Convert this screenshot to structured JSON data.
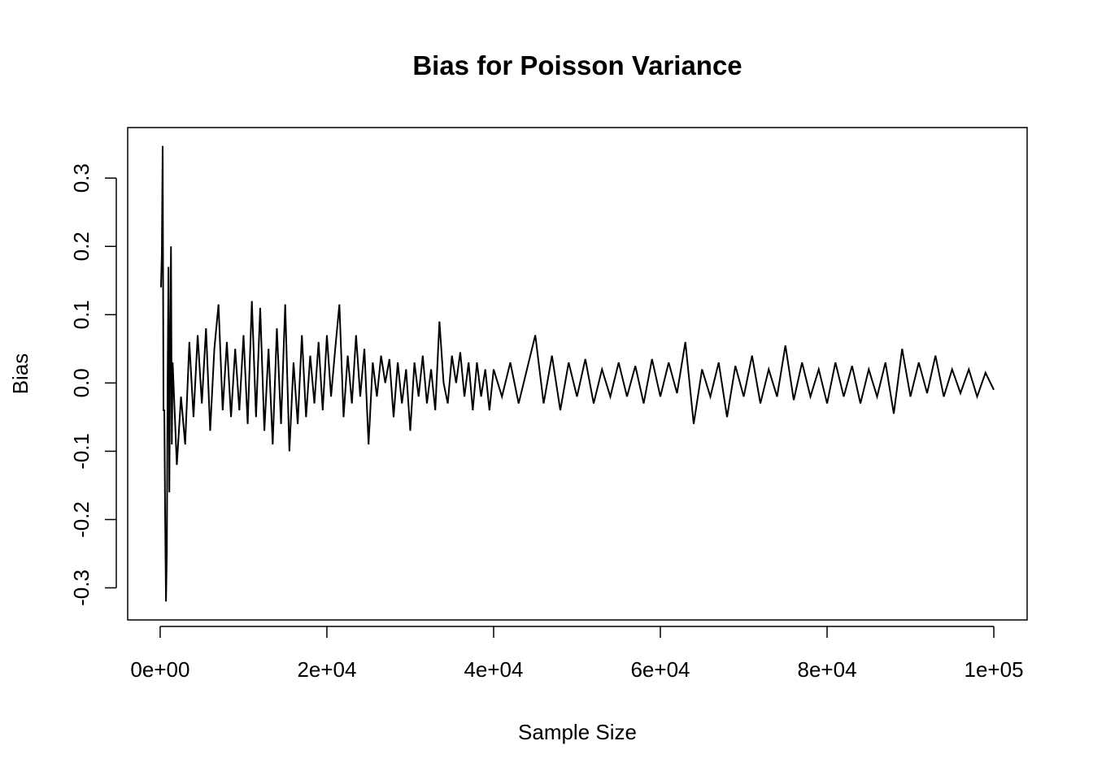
{
  "chart_data": {
    "type": "line",
    "title": "Bias for Poisson Variance",
    "xlabel": "Sample Size",
    "ylabel": "Bias",
    "x": [
      100,
      200,
      300,
      400,
      500,
      600,
      700,
      800,
      900,
      1000,
      1100,
      1200,
      1300,
      1400,
      1500,
      2000,
      2500,
      3000,
      3500,
      4000,
      4500,
      5000,
      5500,
      6000,
      6500,
      7000,
      7500,
      8000,
      8500,
      9000,
      9500,
      10000,
      10500,
      11000,
      11500,
      12000,
      12500,
      13000,
      13500,
      14000,
      14500,
      15000,
      15500,
      16000,
      16500,
      17000,
      17500,
      18000,
      18500,
      19000,
      19500,
      20000,
      20500,
      21000,
      21500,
      22000,
      22500,
      23000,
      23500,
      24000,
      24500,
      25000,
      25500,
      26000,
      26500,
      27000,
      27500,
      28000,
      28500,
      29000,
      29500,
      30000,
      30500,
      31000,
      31500,
      32000,
      32500,
      33000,
      33500,
      34000,
      34500,
      35000,
      35500,
      36000,
      36500,
      37000,
      37500,
      38000,
      38500,
      39000,
      39500,
      40000,
      41000,
      42000,
      43000,
      44000,
      45000,
      46000,
      47000,
      48000,
      49000,
      50000,
      51000,
      52000,
      53000,
      54000,
      55000,
      56000,
      57000,
      58000,
      59000,
      60000,
      61000,
      62000,
      63000,
      64000,
      65000,
      66000,
      67000,
      68000,
      69000,
      70000,
      71000,
      72000,
      73000,
      74000,
      75000,
      76000,
      77000,
      78000,
      79000,
      80000,
      81000,
      82000,
      83000,
      84000,
      85000,
      86000,
      87000,
      88000,
      89000,
      90000,
      91000,
      92000,
      93000,
      94000,
      95000,
      96000,
      97000,
      98000,
      99000,
      100000
    ],
    "series": [
      {
        "name": "Bias",
        "color": "#000000",
        "values": [
          0.14,
          0.19,
          0.347,
          -0.04,
          -0.04,
          -0.2,
          -0.32,
          -0.25,
          0.01,
          0.17,
          -0.16,
          0.05,
          0.2,
          -0.09,
          0.03,
          -0.12,
          -0.02,
          -0.09,
          0.06,
          -0.05,
          0.07,
          -0.03,
          0.08,
          -0.07,
          0.05,
          0.115,
          -0.04,
          0.06,
          -0.05,
          0.05,
          -0.04,
          0.07,
          -0.06,
          0.12,
          -0.05,
          0.11,
          -0.07,
          0.05,
          -0.09,
          0.08,
          -0.06,
          0.115,
          -0.1,
          0.03,
          -0.06,
          0.07,
          -0.05,
          0.04,
          -0.03,
          0.06,
          -0.04,
          0.07,
          -0.02,
          0.05,
          0.115,
          -0.05,
          0.04,
          -0.03,
          0.07,
          -0.02,
          0.05,
          -0.09,
          0.03,
          -0.02,
          0.04,
          0.0,
          0.035,
          -0.05,
          0.03,
          -0.03,
          0.02,
          -0.07,
          0.03,
          -0.02,
          0.04,
          -0.03,
          0.02,
          -0.04,
          0.09,
          0.0,
          -0.03,
          0.04,
          0.0,
          0.045,
          -0.02,
          0.03,
          -0.04,
          0.03,
          -0.02,
          0.02,
          -0.04,
          0.02,
          -0.02,
          0.03,
          -0.03,
          0.02,
          0.07,
          -0.03,
          0.04,
          -0.04,
          0.03,
          -0.02,
          0.035,
          -0.03,
          0.02,
          -0.02,
          0.03,
          -0.02,
          0.025,
          -0.03,
          0.035,
          -0.02,
          0.03,
          -0.015,
          0.06,
          -0.06,
          0.02,
          -0.02,
          0.03,
          -0.05,
          0.025,
          -0.02,
          0.04,
          -0.03,
          0.02,
          -0.02,
          0.055,
          -0.025,
          0.03,
          -0.02,
          0.02,
          -0.03,
          0.03,
          -0.02,
          0.025,
          -0.03,
          0.02,
          -0.02,
          0.03,
          -0.045,
          0.05,
          -0.02,
          0.03,
          -0.015,
          0.04,
          -0.02,
          0.02,
          -0.015,
          0.02,
          -0.02,
          0.015,
          -0.01
        ]
      }
    ],
    "xlim": [
      -3896,
      103996
    ],
    "ylim": [
      -0.347,
      0.374
    ],
    "xticks": [
      {
        "value": 0,
        "label": "0e+00"
      },
      {
        "value": 20000,
        "label": "2e+04"
      },
      {
        "value": 40000,
        "label": "4e+04"
      },
      {
        "value": 60000,
        "label": "6e+04"
      },
      {
        "value": 80000,
        "label": "8e+04"
      },
      {
        "value": 100000,
        "label": "1e+05"
      }
    ],
    "yticks": [
      -0.3,
      -0.2,
      -0.1,
      {
        "value": 0,
        "label": "0.0"
      },
      0.1,
      0.2,
      0.3
    ]
  }
}
